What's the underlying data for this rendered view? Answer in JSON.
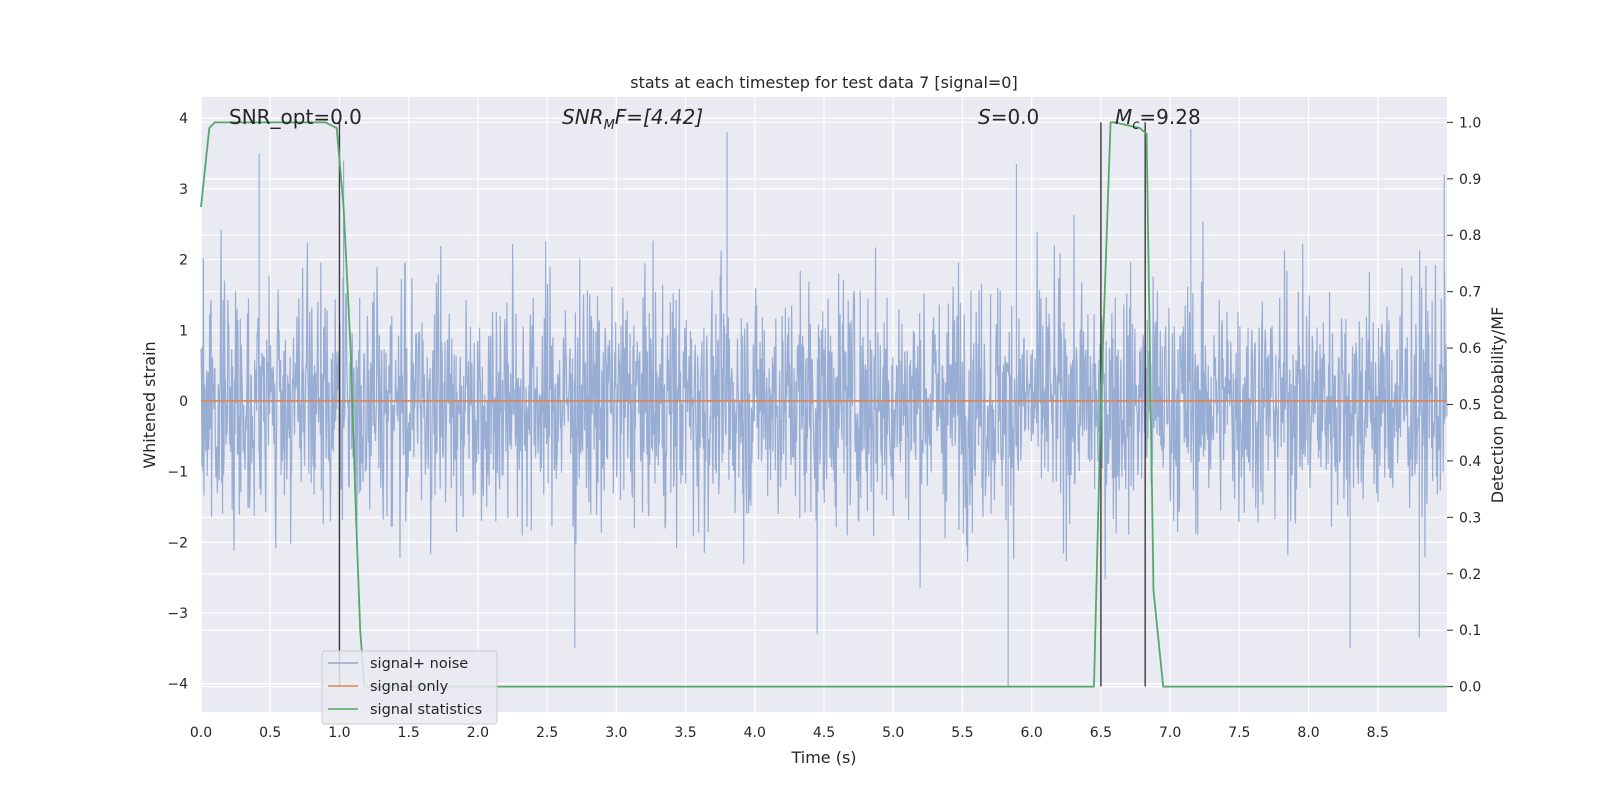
{
  "chart_data": {
    "type": "line",
    "title": "stats at each timestep for test data 7 [signal=0]",
    "xlabel": "Time (s)",
    "ylabel": "Whitened strain",
    "y2label": "Detection probability/MF",
    "xlim": [
      0.0,
      9.0
    ],
    "ylim": [
      -4.4,
      4.3
    ],
    "y2lim": [
      -0.045,
      1.045
    ],
    "x_ticks": [
      "0.0",
      "0.5",
      "1.0",
      "1.5",
      "2.0",
      "2.5",
      "3.0",
      "3.5",
      "4.0",
      "4.5",
      "5.0",
      "5.5",
      "6.0",
      "6.5",
      "7.0",
      "7.5",
      "8.0",
      "8.5"
    ],
    "y_ticks": [
      "−4",
      "−3",
      "−2",
      "−1",
      "0",
      "1",
      "2",
      "3",
      "4"
    ],
    "y2_ticks": [
      "0.0",
      "0.1",
      "0.2",
      "0.3",
      "0.4",
      "0.5",
      "0.6",
      "0.7",
      "0.8",
      "0.9",
      "1.0"
    ],
    "grid": true,
    "legend_position": "lower-left",
    "annotations": {
      "snr_opt": "SNR_opt=0.0",
      "snr_mf_main": "SNR",
      "snr_mf_sub": "M",
      "snr_mf_rest": "F=[4.42]",
      "s_main": "S",
      "s_rest": "=0.0",
      "mc_main": "M",
      "mc_sub": "c",
      "mc_rest": "=9.28"
    },
    "series": [
      {
        "name": "signal+ noise",
        "color": "#8fa6cf",
        "noise_peaks": [
          {
            "x": 0.42,
            "y": 3.5
          },
          {
            "x": 1.03,
            "y": 3.4
          },
          {
            "x": 3.8,
            "y": 3.8
          },
          {
            "x": 5.89,
            "y": 3.35
          },
          {
            "x": 7.15,
            "y": 3.85
          },
          {
            "x": 8.98,
            "y": 3.2
          },
          {
            "x": 2.7,
            "y": -3.5
          },
          {
            "x": 5.83,
            "y": -4.05
          },
          {
            "x": 8.3,
            "y": -3.5
          },
          {
            "x": 1.0,
            "y": -3.8
          },
          {
            "x": 4.45,
            "y": -3.3
          },
          {
            "x": 8.8,
            "y": -3.35
          }
        ]
      },
      {
        "name": "signal only",
        "color": "#dd8452",
        "x": [
          0.0,
          9.0
        ],
        "y": [
          0.0,
          0.0
        ]
      },
      {
        "name": "signal statistics",
        "color": "#55a868",
        "axis": "right",
        "x": [
          0.0,
          0.06,
          0.1,
          0.2,
          0.5,
          0.9,
          0.98,
          1.03,
          1.08,
          1.12,
          1.15,
          1.18,
          2.25,
          6.45,
          6.5,
          6.57,
          6.6,
          6.78,
          6.83,
          6.88,
          6.95,
          9.0
        ],
        "y": [
          0.85,
          0.99,
          1.0,
          1.0,
          1.0,
          1.0,
          0.99,
          0.85,
          0.6,
          0.3,
          0.1,
          0.0,
          0.0,
          0.0,
          0.5,
          1.0,
          1.0,
          0.99,
          0.98,
          0.17,
          0.0,
          0.0
        ]
      }
    ],
    "vertical_lines_x": [
      1.0,
      6.5,
      6.82
    ]
  }
}
